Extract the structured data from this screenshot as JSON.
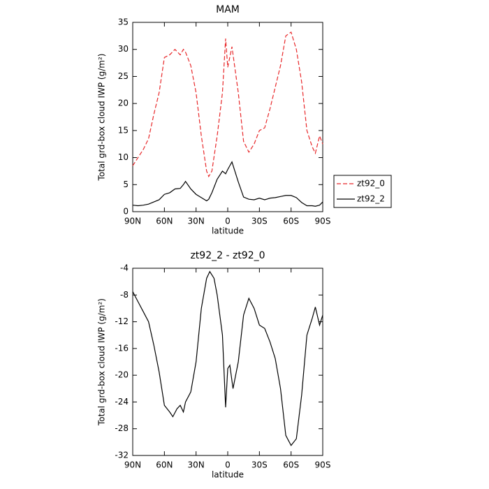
{
  "chart_data": [
    {
      "type": "line",
      "title": "MAM",
      "xlabel": "latitude",
      "ylabel": "Total grd-box cloud IWP (g/m²)",
      "x": [
        90,
        85,
        80,
        75,
        70,
        65,
        60,
        55,
        50,
        45,
        42,
        40,
        35,
        30,
        25,
        20,
        18,
        15,
        10,
        5,
        2,
        0,
        -4,
        -10,
        -15,
        -20,
        -25,
        -30,
        -35,
        -40,
        -45,
        -50,
        -55,
        -60,
        -65,
        -70,
        -75,
        -80,
        -83,
        -87,
        -90
      ],
      "series": [
        {
          "name": "zt92_0",
          "color": "#e8282a",
          "line_style": "dashed",
          "values": [
            8.5,
            10,
            11.5,
            13.5,
            18,
            22,
            28.5,
            29,
            30,
            29,
            30,
            29.5,
            27,
            22,
            14,
            7.5,
            6.5,
            7.5,
            14,
            22,
            32,
            26.7,
            30.5,
            22,
            13,
            11,
            12.5,
            15,
            15.5,
            19,
            23,
            27,
            32.5,
            33.2,
            30,
            24,
            15,
            12,
            10.8,
            14,
            12.5
          ]
        },
        {
          "name": "zt92_2",
          "color": "#000000",
          "line_style": "solid",
          "values": [
            1.2,
            1.1,
            1.2,
            1.4,
            1.8,
            2.2,
            3.2,
            3.5,
            4.2,
            4.3,
            5.0,
            5.6,
            4.2,
            3.2,
            2.6,
            2.0,
            2.3,
            3.5,
            6,
            7.5,
            7.0,
            7.8,
            9.2,
            5.5,
            2.7,
            2.3,
            2.2,
            2.5,
            2.2,
            2.5,
            2.6,
            2.8,
            3.0,
            3.0,
            2.6,
            1.7,
            1.1,
            1.1,
            1.0,
            1.2,
            1.8
          ]
        }
      ],
      "xlim": [
        90,
        -90
      ],
      "xticks": [
        {
          "value": 90,
          "label": "90N"
        },
        {
          "value": 60,
          "label": "60N"
        },
        {
          "value": 30,
          "label": "30N"
        },
        0,
        {
          "value": -30,
          "label": "30S"
        },
        {
          "value": -60,
          "label": "60S"
        },
        {
          "value": -90,
          "label": "90S"
        }
      ],
      "ylim": [
        0,
        35
      ],
      "yticks": [
        0,
        5,
        10,
        15,
        20,
        25,
        30,
        35
      ],
      "legend": "right"
    },
    {
      "type": "line",
      "title": "zt92_2 - zt92_0",
      "xlabel": "latitude",
      "ylabel": "Total grd-box cloud IWP (g/m²)",
      "x": [
        90,
        85,
        80,
        75,
        70,
        65,
        60,
        55,
        52,
        48,
        45,
        42,
        40,
        35,
        30,
        25,
        20,
        17,
        13,
        10,
        5,
        2,
        0,
        -2,
        -5,
        -10,
        -15,
        -20,
        -25,
        -30,
        -35,
        -40,
        -45,
        -50,
        -55,
        -60,
        -65,
        -70,
        -75,
        -80,
        -83,
        -87,
        -90
      ],
      "series": [
        {
          "color": "#000000",
          "line_style": "solid",
          "values": [
            -7.5,
            -9,
            -10.5,
            -12,
            -15.5,
            -19.5,
            -24.5,
            -25.5,
            -26.2,
            -25,
            -24.5,
            -25.5,
            -24,
            -22.5,
            -18,
            -10,
            -5.5,
            -4.5,
            -5.5,
            -8,
            -14,
            -24.8,
            -19,
            -18.5,
            -22,
            -18,
            -11,
            -8.5,
            -10,
            -12.5,
            -13,
            -15,
            -17.5,
            -22,
            -29,
            -30.5,
            -29.5,
            -23,
            -14,
            -11.5,
            -9.8,
            -12.5,
            -11
          ]
        }
      ],
      "xlim": [
        90,
        -90
      ],
      "xticks": [
        {
          "value": 90,
          "label": "90N"
        },
        {
          "value": 60,
          "label": "60N"
        },
        {
          "value": 30,
          "label": "30N"
        },
        0,
        {
          "value": -30,
          "label": "30S"
        },
        {
          "value": -60,
          "label": "60S"
        },
        {
          "value": -90,
          "label": "90S"
        }
      ],
      "ylim": [
        -32,
        -4
      ],
      "yticks": [
        -32,
        -28,
        -24,
        -20,
        -16,
        -12,
        -8,
        -4
      ]
    }
  ]
}
